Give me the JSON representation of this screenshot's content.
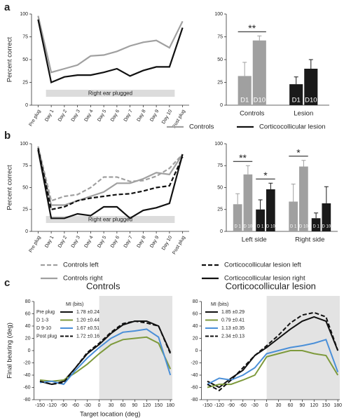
{
  "panel_labels": [
    "a",
    "b",
    "c"
  ],
  "chart_data": [
    {
      "type": "line",
      "y_label": "Percent correct",
      "band_label": "Right ear plugged",
      "categories": [
        "Pre plug",
        "Day 1",
        "Day 2",
        "Day 3",
        "Day 4",
        "Day 5",
        "Day 6",
        "Day 7",
        "Day 8",
        "Day 9",
        "Day 10",
        "Post plug"
      ],
      "ylim": [
        0,
        100
      ],
      "yticks": [
        0,
        25,
        50,
        75,
        100
      ],
      "series": [
        {
          "name": "Controls",
          "color": "#a0a0a0",
          "dash": false,
          "values": [
            98,
            36,
            40,
            44,
            54,
            55,
            59,
            65,
            69,
            71,
            63,
            92
          ]
        },
        {
          "name": "Corticocollicular lesion",
          "color": "#111111",
          "dash": false,
          "values": [
            94,
            25,
            31,
            33,
            33,
            36,
            40,
            32,
            38,
            42,
            42,
            85
          ]
        }
      ]
    },
    {
      "type": "bar",
      "ylim": [
        0,
        100
      ],
      "yticks": [
        0,
        25,
        50,
        75,
        100
      ],
      "groups": [
        {
          "name": "Controls",
          "subgroups": [
            {
              "color": "#a0a0a0",
              "significance": "**",
              "bars": [
                {
                  "label": "D1",
                  "value": 32,
                  "error": 15
                },
                {
                  "label": "D10",
                  "value": 71,
                  "error": 5
                }
              ]
            }
          ]
        },
        {
          "name": "Lesion",
          "subgroups": [
            {
              "color": "#1a1a1a",
              "bars": [
                {
                  "label": "D1",
                  "value": 23,
                  "error": 8
                },
                {
                  "label": "D10",
                  "value": 40,
                  "error": 10
                }
              ]
            }
          ]
        }
      ]
    },
    {
      "type": "line",
      "y_label": "Percent correct",
      "band_label": "Right ear plugged",
      "categories": [
        "Pre plug",
        "Day 1",
        "Day 2",
        "Day 3",
        "Day 4",
        "Day 5",
        "Day 6",
        "Day 7",
        "Day 8",
        "Day 9",
        "Day 10",
        "Post plug"
      ],
      "ylim": [
        0,
        100
      ],
      "yticks": [
        0,
        25,
        50,
        75,
        100
      ],
      "series": [
        {
          "name": "Controls left",
          "color": "#a0a0a0",
          "dash": true,
          "values": [
            97,
            35,
            40,
            42,
            50,
            62,
            62,
            57,
            58,
            63,
            72,
            88
          ]
        },
        {
          "name": "Controls right",
          "color": "#a0a0a0",
          "dash": false,
          "values": [
            95,
            30,
            30,
            35,
            40,
            45,
            55,
            55,
            60,
            67,
            65,
            88
          ]
        },
        {
          "name": "Corticocollicular lesion left",
          "color": "#111111",
          "dash": true,
          "values": [
            95,
            25,
            28,
            35,
            38,
            40,
            42,
            43,
            46,
            50,
            52,
            85
          ]
        },
        {
          "name": "Corticocollicular lesion right",
          "color": "#111111",
          "dash": false,
          "values": [
            93,
            15,
            15,
            20,
            18,
            28,
            28,
            15,
            24,
            27,
            32,
            88
          ]
        }
      ]
    },
    {
      "type": "bar",
      "ylim": [
        0,
        100
      ],
      "yticks": [
        0,
        25,
        50,
        75,
        100
      ],
      "groups": [
        {
          "name": "Left side",
          "subgroups": [
            {
              "color": "#a0a0a0",
              "significance": "**",
              "bars": [
                {
                  "label": "D 1",
                  "value": 31,
                  "error": 12
                },
                {
                  "label": "D 10",
                  "value": 65,
                  "error": 10
                }
              ]
            },
            {
              "color": "#1a1a1a",
              "significance": "*",
              "bars": [
                {
                  "label": "D 1",
                  "value": 25,
                  "error": 11
                },
                {
                  "label": "D 10",
                  "value": 48,
                  "error": 7
                }
              ]
            }
          ]
        },
        {
          "name": "Right side",
          "subgroups": [
            {
              "color": "#a0a0a0",
              "significance": "*",
              "bars": [
                {
                  "label": "D 1",
                  "value": 34,
                  "error": 20
                },
                {
                  "label": "D 10",
                  "value": 74,
                  "error": 7
                }
              ]
            },
            {
              "color": "#1a1a1a",
              "bars": [
                {
                  "label": "D 1",
                  "value": 15,
                  "error": 6
                },
                {
                  "label": "D 10",
                  "value": 32,
                  "error": 19
                }
              ]
            }
          ]
        }
      ]
    },
    {
      "type": "line",
      "title": "Controls",
      "x_label": "Target location (deg)",
      "y_label": "Final bearing (deg)",
      "shaded": true,
      "legend_title": "MI (bits)",
      "x": [
        -150,
        -120,
        -90,
        -60,
        -30,
        0,
        30,
        60,
        90,
        120,
        150,
        180
      ],
      "xlim": [
        -165,
        185
      ],
      "xticks": [
        -150,
        -120,
        -90,
        -60,
        -30,
        0,
        30,
        60,
        90,
        120,
        150,
        180
      ],
      "ylim": [
        -80,
        80
      ],
      "yticks": [
        -80,
        -60,
        -40,
        -20,
        0,
        20,
        40,
        60,
        80
      ],
      "series": [
        {
          "name": "Pre plug",
          "mi": "1.78 ±0.24",
          "color": "#111111",
          "dash": false,
          "values": [
            -50,
            -55,
            -50,
            -28,
            -5,
            10,
            28,
            42,
            48,
            48,
            40,
            -3
          ]
        },
        {
          "name": "D 1-3",
          "mi": "1.20 ±0.44",
          "color": "#7e9a3c",
          "dash": false,
          "values": [
            -48,
            -50,
            -48,
            -36,
            -22,
            -5,
            10,
            18,
            20,
            22,
            12,
            -30
          ]
        },
        {
          "name": "D 9-10",
          "mi": "1.67 ±0.51",
          "color": "#4a8fd8",
          "dash": false,
          "values": [
            -52,
            -50,
            -55,
            -32,
            -12,
            5,
            20,
            30,
            32,
            35,
            22,
            -40
          ]
        },
        {
          "name": "Post plug",
          "mi": "1.72 ±0.16",
          "color": "#111111",
          "dash": true,
          "values": [
            -50,
            -55,
            -52,
            -28,
            -3,
            12,
            30,
            44,
            48,
            45,
            40,
            -5
          ]
        }
      ]
    },
    {
      "type": "line",
      "title": "Corticocollicular lesion",
      "shaded": true,
      "legend_title": "MI (bits)",
      "x": [
        -150,
        -120,
        -90,
        -60,
        -30,
        0,
        30,
        60,
        90,
        120,
        150,
        180
      ],
      "xlim": [
        -165,
        185
      ],
      "xticks": [
        -150,
        -120,
        -90,
        -60,
        -30,
        0,
        30,
        60,
        90,
        120,
        150,
        180
      ],
      "ylim": [
        -80,
        80
      ],
      "yticks": [
        -80,
        -60,
        -40,
        -20,
        0,
        20,
        40,
        60,
        80
      ],
      "series": [
        {
          "mi": "1.85 ±0.29",
          "color": "#111111",
          "dash": false,
          "values": [
            -50,
            -60,
            -45,
            -32,
            -8,
            5,
            20,
            35,
            48,
            55,
            48,
            0
          ]
        },
        {
          "mi": "0.79 ±0.41",
          "color": "#7e9a3c",
          "dash": false,
          "values": [
            -60,
            -55,
            -55,
            -48,
            -40,
            -10,
            -5,
            0,
            0,
            -5,
            -8,
            -40
          ]
        },
        {
          "mi": "1.13 ±0.35",
          "color": "#4a8fd8",
          "dash": false,
          "values": [
            -55,
            -45,
            -48,
            -40,
            -28,
            -5,
            0,
            5,
            8,
            12,
            18,
            -35
          ]
        },
        {
          "mi": "2.34 ±0.13",
          "color": "#111111",
          "dash": true,
          "values": [
            -55,
            -65,
            -48,
            -28,
            -8,
            8,
            25,
            45,
            58,
            62,
            55,
            0
          ]
        }
      ]
    }
  ]
}
